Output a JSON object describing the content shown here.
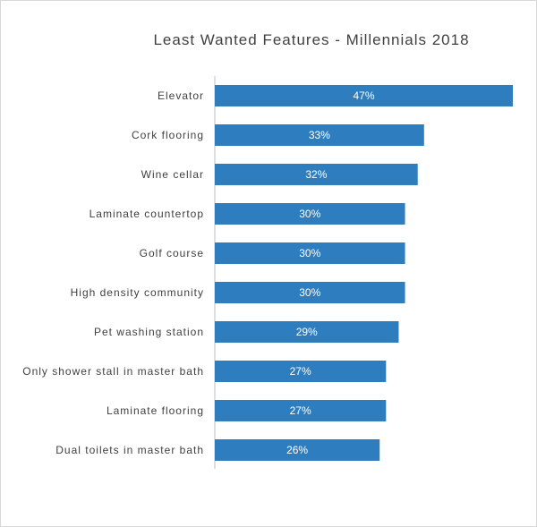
{
  "chart_data": {
    "type": "bar",
    "orientation": "horizontal",
    "title": "Least Wanted Features - Millennials 2018",
    "categories": [
      "Elevator",
      "Cork flooring",
      "Wine cellar",
      "Laminate countertop",
      "Golf course",
      "High density community",
      "Pet washing station",
      "Only shower stall in master bath",
      "Laminate flooring",
      "Dual toilets in master bath"
    ],
    "values": [
      47,
      33,
      32,
      30,
      30,
      30,
      29,
      27,
      27,
      26
    ],
    "value_labels": [
      "47%",
      "33%",
      "32%",
      "30%",
      "30%",
      "30%",
      "29%",
      "27%",
      "27%",
      "26%"
    ],
    "xlim": [
      0,
      47
    ],
    "grid": false,
    "legend": "none",
    "bar_color": "#2E7EBF"
  }
}
